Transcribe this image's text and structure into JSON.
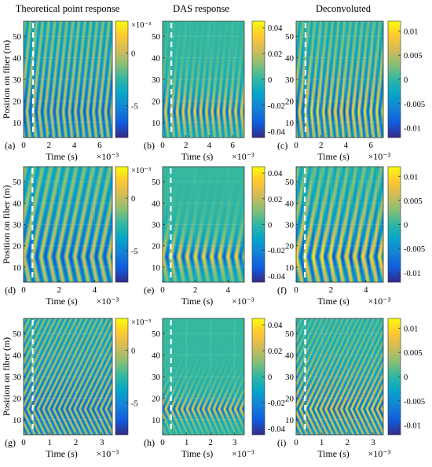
{
  "column_titles": [
    "Theoretical point response",
    "DAS response",
    "Deconvoluted"
  ],
  "ylabel": "Position on fiber (m)",
  "xlabel": "Time (s)",
  "x_exponent": "×10⁻³",
  "colormap": {
    "name": "parula",
    "stops": [
      "#352a87",
      "#0f5cdd",
      "#1481d6",
      "#06a4ca",
      "#2eb7a4",
      "#87bf77",
      "#d1bb59",
      "#fec832",
      "#f9fb0e"
    ]
  },
  "dashed_line_color": "#ffffff",
  "chart_data": [
    {
      "panel_label": "(a)",
      "type": "heatmap",
      "column": 0,
      "row": 0,
      "kind": "theoretical",
      "xlim": [
        0,
        7
      ],
      "x_ticks": [
        0,
        2,
        4,
        6
      ],
      "x_tick_labels": [
        "0",
        "2",
        "4",
        "6"
      ],
      "ylim": [
        3,
        57
      ],
      "y_ticks": [
        10,
        20,
        30,
        40,
        50
      ],
      "y_tick_labels": [
        "10",
        "20",
        "30",
        "40",
        "50"
      ],
      "dashed_x": 0.75,
      "source_m": 15,
      "decay": 0.022,
      "freq": 0.21,
      "speed_m_per_unit": 55,
      "clim": [
        -8,
        3
      ],
      "colorbar_ticks": [
        -5,
        0
      ],
      "colorbar_tick_labels": [
        "-5",
        "0"
      ],
      "colorbar_exponent": "×10⁻³"
    },
    {
      "panel_label": "(b)",
      "type": "heatmap",
      "column": 1,
      "row": 0,
      "kind": "das",
      "xlim": [
        0,
        7
      ],
      "x_ticks": [
        0,
        2,
        4,
        6
      ],
      "x_tick_labels": [
        "0",
        "2",
        "4",
        "6"
      ],
      "ylim": [
        3,
        57
      ],
      "y_ticks": [
        10,
        20,
        30,
        40,
        50
      ],
      "y_tick_labels": [
        "10",
        "20",
        "30",
        "40",
        "50"
      ],
      "dashed_x": 0.75,
      "source_m": 15,
      "decay": 0.09,
      "freq": 0.2,
      "speed_m_per_unit": 55,
      "clim": [
        -0.045,
        0.045
      ],
      "colorbar_ticks": [
        0.04,
        0.02,
        0,
        -0.02,
        -0.04
      ],
      "colorbar_tick_labels": [
        "0.04",
        "0.02",
        "0",
        "-0.02",
        "-0.04"
      ]
    },
    {
      "panel_label": "(c)",
      "type": "heatmap",
      "column": 2,
      "row": 0,
      "kind": "deconv",
      "xlim": [
        0,
        7
      ],
      "x_ticks": [
        0,
        2,
        4,
        6
      ],
      "x_tick_labels": [
        "0",
        "2",
        "4",
        "6"
      ],
      "ylim": [
        3,
        57
      ],
      "y_ticks": [
        10,
        20,
        30,
        40,
        50
      ],
      "y_tick_labels": [
        "10",
        "20",
        "30",
        "40",
        "50"
      ],
      "dashed_x": 0.75,
      "source_m": 15,
      "decay": 0.035,
      "freq": 0.21,
      "speed_m_per_unit": 55,
      "clim": [
        -0.012,
        0.012
      ],
      "colorbar_ticks": [
        0.01,
        0.005,
        0,
        -0.005,
        -0.01
      ],
      "colorbar_tick_labels": [
        "0.01",
        "0.005",
        "0",
        "-0.005",
        "-0.01"
      ]
    },
    {
      "panel_label": "(d)",
      "type": "heatmap",
      "column": 0,
      "row": 1,
      "kind": "theoretical",
      "xlim": [
        0,
        5
      ],
      "x_ticks": [
        0,
        2,
        4
      ],
      "x_tick_labels": [
        "0",
        "2",
        "4"
      ],
      "ylim": [
        3,
        57
      ],
      "y_ticks": [
        10,
        20,
        30,
        40,
        50
      ],
      "y_tick_labels": [
        "10",
        "20",
        "30",
        "40",
        "50"
      ],
      "dashed_x": 0.5,
      "source_m": 15,
      "decay": 0.022,
      "freq": 0.21,
      "speed_m_per_unit": 40,
      "clim": [
        -8,
        3
      ],
      "colorbar_ticks": [
        -5,
        0
      ],
      "colorbar_tick_labels": [
        "-5",
        "0"
      ],
      "colorbar_exponent": "×10⁻³"
    },
    {
      "panel_label": "(e)",
      "type": "heatmap",
      "column": 1,
      "row": 1,
      "kind": "das",
      "xlim": [
        0,
        5
      ],
      "x_ticks": [
        0,
        2,
        4
      ],
      "x_tick_labels": [
        "0",
        "2",
        "4"
      ],
      "ylim": [
        3,
        57
      ],
      "y_ticks": [
        10,
        20,
        30,
        40,
        50
      ],
      "y_tick_labels": [
        "10",
        "20",
        "30",
        "40",
        "50"
      ],
      "dashed_x": 0.5,
      "source_m": 15,
      "decay": 0.12,
      "freq": 0.2,
      "speed_m_per_unit": 40,
      "clim": [
        -0.045,
        0.045
      ],
      "colorbar_ticks": [
        0.04,
        0.02,
        0,
        -0.02,
        -0.04
      ],
      "colorbar_tick_labels": [
        "0.04",
        "0.02",
        "0",
        "-0.02",
        "-0.04"
      ]
    },
    {
      "panel_label": "(f)",
      "type": "heatmap",
      "column": 2,
      "row": 1,
      "kind": "deconv",
      "xlim": [
        0,
        5
      ],
      "x_ticks": [
        0,
        2,
        4
      ],
      "x_tick_labels": [
        "0",
        "2",
        "4"
      ],
      "ylim": [
        3,
        57
      ],
      "y_ticks": [
        10,
        20,
        30,
        40,
        50
      ],
      "y_tick_labels": [
        "10",
        "20",
        "30",
        "40",
        "50"
      ],
      "dashed_x": 0.5,
      "source_m": 15,
      "decay": 0.035,
      "freq": 0.21,
      "speed_m_per_unit": 40,
      "clim": [
        -0.012,
        0.012
      ],
      "colorbar_ticks": [
        0.01,
        0.005,
        0,
        -0.005,
        -0.01
      ],
      "colorbar_tick_labels": [
        "0.01",
        "0.005",
        "0",
        "-0.005",
        "-0.01"
      ]
    },
    {
      "panel_label": "(g)",
      "type": "heatmap",
      "column": 0,
      "row": 2,
      "kind": "theoretical",
      "xlim": [
        0,
        3.4
      ],
      "x_ticks": [
        0,
        1,
        2,
        3
      ],
      "x_tick_labels": [
        "0",
        "1",
        "2",
        "3"
      ],
      "ylim": [
        3,
        57
      ],
      "y_ticks": [
        10,
        20,
        30,
        40,
        50
      ],
      "y_tick_labels": [
        "10",
        "20",
        "30",
        "40",
        "50"
      ],
      "dashed_x": 0.35,
      "source_m": 15,
      "decay": 0.018,
      "freq": 0.5,
      "speed_m_per_unit": 25,
      "clim": [
        -8,
        3
      ],
      "colorbar_ticks": [
        -5,
        0
      ],
      "colorbar_tick_labels": [
        "-5",
        "0"
      ],
      "colorbar_exponent": "×10⁻³"
    },
    {
      "panel_label": "(h)",
      "type": "heatmap",
      "column": 1,
      "row": 2,
      "kind": "das",
      "xlim": [
        0,
        3.4
      ],
      "x_ticks": [
        0,
        1,
        2,
        3
      ],
      "x_tick_labels": [
        "0",
        "1",
        "2",
        "3"
      ],
      "ylim": [
        3,
        57
      ],
      "y_ticks": [
        10,
        20,
        30,
        40,
        50
      ],
      "y_tick_labels": [
        "10",
        "20",
        "30",
        "40",
        "50"
      ],
      "dashed_x": 0.35,
      "source_m": 15,
      "decay": 0.16,
      "freq": 0.45,
      "speed_m_per_unit": 25,
      "clim": [
        -0.045,
        0.045
      ],
      "colorbar_ticks": [
        0.04,
        0.02,
        0,
        -0.02,
        -0.04
      ],
      "colorbar_tick_labels": [
        "0.04",
        "0.02",
        "0",
        "-0.02",
        "-0.04"
      ]
    },
    {
      "panel_label": "(i)",
      "type": "heatmap",
      "column": 2,
      "row": 2,
      "kind": "deconv",
      "xlim": [
        0,
        3.4
      ],
      "x_ticks": [
        0,
        1,
        2,
        3
      ],
      "x_tick_labels": [
        "0",
        "1",
        "2",
        "3"
      ],
      "ylim": [
        3,
        57
      ],
      "y_ticks": [
        10,
        20,
        30,
        40,
        50
      ],
      "y_tick_labels": [
        "10",
        "20",
        "30",
        "40",
        "50"
      ],
      "dashed_x": 0.35,
      "source_m": 15,
      "decay": 0.04,
      "freq": 0.5,
      "speed_m_per_unit": 25,
      "clim": [
        -0.012,
        0.012
      ],
      "colorbar_ticks": [
        0.01,
        0.005,
        0,
        -0.005,
        -0.01
      ],
      "colorbar_tick_labels": [
        "0.01",
        "0.005",
        "0",
        "-0.005",
        "-0.01"
      ]
    }
  ]
}
